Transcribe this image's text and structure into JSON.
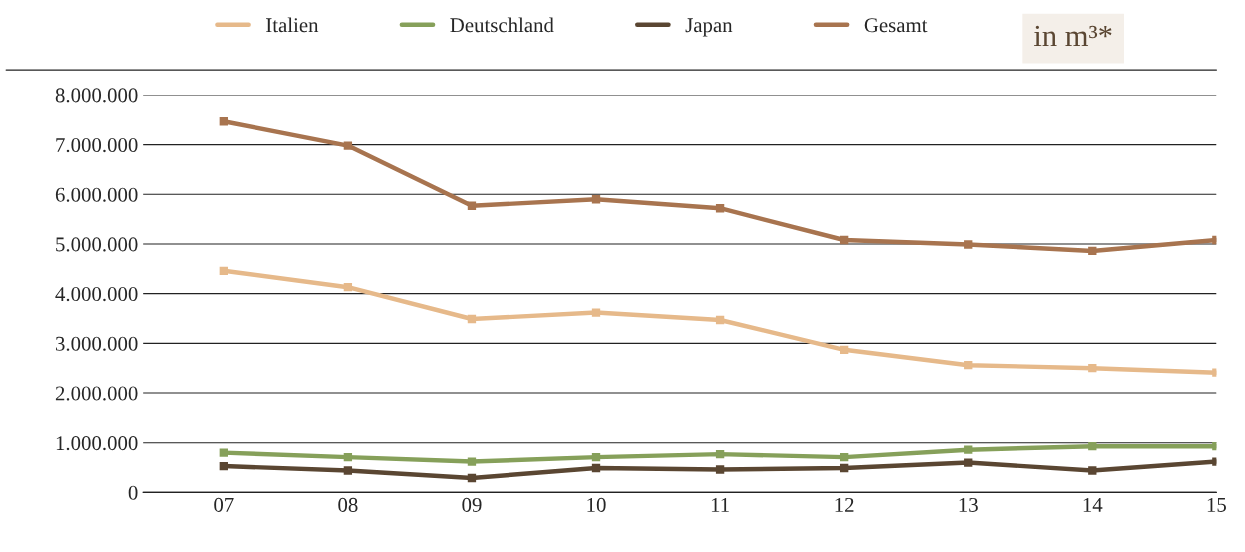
{
  "chart_data": {
    "type": "line",
    "categories": [
      "07",
      "08",
      "09",
      "10",
      "11",
      "12",
      "13",
      "14",
      "15"
    ],
    "series": [
      {
        "name": "Italien",
        "color": "#e6b98a",
        "values": [
          4460000,
          4130000,
          3490000,
          3620000,
          3470000,
          2870000,
          2560000,
          2500000,
          2410000
        ]
      },
      {
        "name": "Deutschland",
        "color": "#86a05a",
        "values": [
          800000,
          710000,
          620000,
          710000,
          770000,
          710000,
          860000,
          930000,
          930000
        ]
      },
      {
        "name": "Japan",
        "color": "#5a4632",
        "values": [
          530000,
          440000,
          290000,
          490000,
          460000,
          490000,
          600000,
          440000,
          620000
        ]
      },
      {
        "name": "Gesamt",
        "color": "#a8744f",
        "values": [
          7470000,
          6980000,
          5770000,
          5900000,
          5720000,
          5080000,
          4990000,
          4860000,
          5080000
        ]
      }
    ],
    "ylim": [
      0,
      8000000
    ],
    "yticks": [
      0,
      {
        "value": 1000000,
        "label": "1.000.000"
      },
      {
        "value": 2000000,
        "label": "2.000.000"
      },
      {
        "value": 3000000,
        "label": "3.000.000"
      },
      {
        "value": 4000000,
        "label": "4.000.000"
      },
      {
        "value": 5000000,
        "label": "5.000.000"
      },
      {
        "value": 6000000,
        "label": "6.000.000"
      },
      {
        "value": 7000000,
        "label": "7.000.000"
      },
      {
        "value": 8000000,
        "label": "8.000.000"
      }
    ],
    "grid": "y",
    "legend": "top",
    "marker": "square",
    "line_style": "solid",
    "annotations": [
      "in m³*"
    ]
  }
}
